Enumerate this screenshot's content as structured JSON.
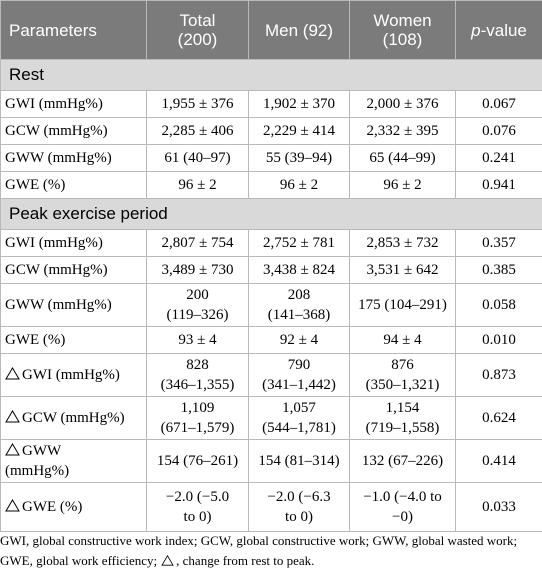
{
  "header": {
    "parameters": "Parameters",
    "total": "Total",
    "total_n": "(200)",
    "men": "Men (92)",
    "women": "Women",
    "women_n": "(108)",
    "pvalue_p": "p",
    "pvalue_rest": "-value"
  },
  "sections": {
    "rest": "Rest",
    "peak": "Peak exercise period"
  },
  "rest_rows": [
    {
      "label": "GWI (mmHg%)",
      "total": "1,955 ± 376",
      "men": "1,902 ± 370",
      "women": "2,000 ± 376",
      "p": "0.067"
    },
    {
      "label": "GCW (mmHg%)",
      "total": "2,285 ± 406",
      "men": "2,229 ± 414",
      "women": "2,332 ± 395",
      "p": "0.076"
    },
    {
      "label": "GWW (mmHg%)",
      "total": "61 (40–97)",
      "men": "55 (39–94)",
      "women": "65 (44–99)",
      "p": "0.241"
    },
    {
      "label": "GWE (%)",
      "total": "96 ± 2",
      "men": "96 ± 2",
      "women": "96 ± 2",
      "p": "0.941"
    }
  ],
  "peak_rows": [
    {
      "label": "GWI (mmHg%)",
      "total": "2,807 ± 754",
      "men": "2,752 ± 781",
      "women": "2,853 ± 732",
      "p": "0.357"
    },
    {
      "label": "GCW (mmHg%)",
      "total": "3,489 ± 730",
      "men": "3,438 ± 824",
      "women": "3,531 ± 642",
      "p": "0.385"
    },
    {
      "label": "GWW (mmHg%)",
      "total_a": "200",
      "total_b": "(119–326)",
      "men_a": "208",
      "men_b": "(141–368)",
      "women": "175 (104–291)",
      "p": "0.058"
    },
    {
      "label": "GWE (%)",
      "total": "93 ± 4",
      "men": "92 ± 4",
      "women": "94 ± 4",
      "p": "0.010"
    }
  ],
  "delta_rows": [
    {
      "label": "GWI (mmHg%)",
      "total_a": "828",
      "total_b": "(346–1,355)",
      "men_a": "790",
      "men_b": "(341–1,442)",
      "women_a": "876",
      "women_b": "(350–1,321)",
      "p": "0.873"
    },
    {
      "label": "GCW (mmHg%)",
      "total_a": "1,109",
      "total_b": "(671–1,579)",
      "men_a": "1,057",
      "men_b": "(544–1,781)",
      "women_a": "1,154",
      "women_b": "(719–1,558)",
      "p": "0.624"
    },
    {
      "label_a": "GWW",
      "label_b": "(mmHg%)",
      "total": "154 (76–261)",
      "men": "154 (81–314)",
      "women": "132 (67–226)",
      "p": "0.414"
    },
    {
      "label": "GWE (%)",
      "total_a": "−2.0 (−5.0",
      "total_b": "to 0)",
      "men_a": "−2.0 (−6.3",
      "men_b": "to 0)",
      "women_a": "−1.0 (−4.0 to",
      "women_b": "−0)",
      "p": "0.033"
    }
  ],
  "footnote": {
    "text": "GWI, global constructive work index; GCW, global constructive work; GWW, global wasted work; GWE, global work efficiency;",
    "delta_text": ", change from rest to peak."
  }
}
